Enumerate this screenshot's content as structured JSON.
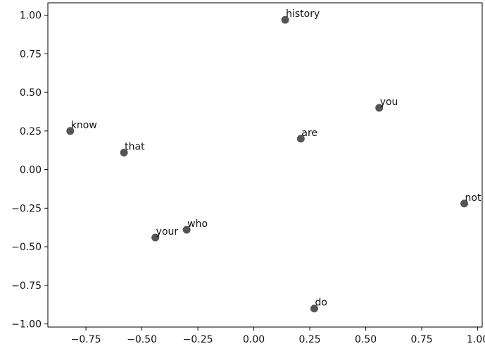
{
  "chart_data": {
    "type": "scatter",
    "title": "",
    "xlabel": "",
    "ylabel": "",
    "xlim": [
      -0.92,
      1.02
    ],
    "ylim": [
      -1.02,
      1.08
    ],
    "xticks": [
      -0.75,
      -0.5,
      -0.25,
      0.0,
      0.25,
      0.5,
      0.75,
      1.0
    ],
    "yticks": [
      -1.0,
      -0.75,
      -0.5,
      -0.25,
      0.0,
      0.25,
      0.5,
      0.75,
      1.0
    ],
    "xtick_labels": [
      "−0.75",
      "−0.50",
      "−0.25",
      "0.00",
      "0.25",
      "0.50",
      "0.75",
      "1.00"
    ],
    "ytick_labels": [
      "−1.00",
      "−0.75",
      "−0.50",
      "−0.25",
      "0.00",
      "0.25",
      "0.50",
      "0.75",
      "1.00"
    ],
    "grid": false,
    "legend": "none",
    "point_color": "#555555",
    "points": [
      {
        "label": "history",
        "x": 0.14,
        "y": 0.97
      },
      {
        "label": "you",
        "x": 0.56,
        "y": 0.4
      },
      {
        "label": "know",
        "x": -0.82,
        "y": 0.25
      },
      {
        "label": "are",
        "x": 0.21,
        "y": 0.2
      },
      {
        "label": "that",
        "x": -0.58,
        "y": 0.11
      },
      {
        "label": "not",
        "x": 0.94,
        "y": -0.22
      },
      {
        "label": "who",
        "x": -0.3,
        "y": -0.39
      },
      {
        "label": "your",
        "x": -0.44,
        "y": -0.44
      },
      {
        "label": "do",
        "x": 0.27,
        "y": -0.9
      }
    ]
  }
}
